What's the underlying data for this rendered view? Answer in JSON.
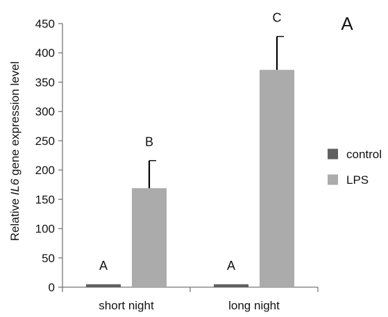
{
  "chart_data": {
    "type": "bar",
    "panel_label": "A",
    "ylabel_prefix": "Relative ",
    "ylabel_gene": "IL6",
    "ylabel_suffix": " gene expression level",
    "xlabel": "",
    "ylim": [
      0,
      450
    ],
    "yticks": [
      0,
      50,
      100,
      150,
      200,
      250,
      300,
      350,
      400,
      450
    ],
    "categories": [
      "short night",
      "long night"
    ],
    "series": [
      {
        "name": "control",
        "color": "#606060",
        "values": [
          5,
          5
        ],
        "errors": [
          0,
          0
        ],
        "letters": [
          "A",
          "A"
        ]
      },
      {
        "name": "LPS",
        "color": "#ababab",
        "values": [
          169,
          371
        ],
        "errors": [
          47,
          57
        ],
        "letters": [
          "B",
          "C"
        ]
      }
    ],
    "legend_position": "right",
    "grid": false
  }
}
